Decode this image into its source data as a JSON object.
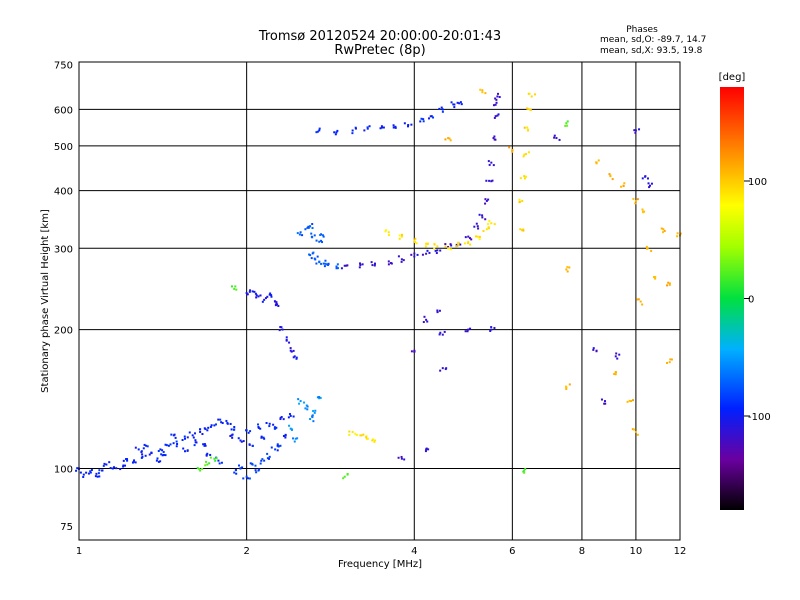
{
  "header": {
    "title_line1": "Tromsø 20120524 20:00:00-20:01:43",
    "title_line2": "RwPretec (8p)",
    "phases_title": "Phases",
    "phases_line1": "mean, sd,O: -89.7, 14.7",
    "phases_line2": "mean, sd,X:  93.5, 19.8"
  },
  "colorbar": {
    "unit_label": "[deg]",
    "min": -180,
    "max": 180,
    "ticks": [
      {
        "value": 100,
        "label": "100"
      },
      {
        "value": 0,
        "label": "0"
      },
      {
        "value": -100,
        "label": "-100"
      }
    ]
  },
  "chart_data": {
    "type": "scatter",
    "xlabel": "Frequency [MHz]",
    "ylabel": "Stationary phase Virtual Height [km]",
    "x_scale": "log",
    "y_scale": "log",
    "xlim": [
      1,
      12
    ],
    "ylim": [
      70,
      760
    ],
    "x_ticks": [
      {
        "value": 1,
        "label": "1"
      },
      {
        "value": 2,
        "label": "2"
      },
      {
        "value": 4,
        "label": "4"
      },
      {
        "value": 6,
        "label": "6"
      },
      {
        "value": 8,
        "label": "8"
      },
      {
        "value": 10,
        "label": "10"
      },
      {
        "value": 12,
        "label": "12"
      }
    ],
    "x_grid": [
      2,
      4,
      6,
      8,
      10
    ],
    "y_ticks": [
      {
        "value": 75,
        "label": "75"
      },
      {
        "value": 100,
        "label": "100"
      },
      {
        "value": 200,
        "label": "200"
      },
      {
        "value": 300,
        "label": "300"
      },
      {
        "value": 400,
        "label": "400"
      },
      {
        "value": 500,
        "label": "500"
      },
      {
        "value": 600,
        "label": "600"
      },
      {
        "value": 750,
        "label": "750"
      }
    ],
    "y_grid": [
      100,
      200,
      300,
      400,
      500,
      600
    ],
    "grid": true,
    "traces": [
      {
        "phase": -100,
        "points": [
          [
            1.0,
            100
          ],
          [
            1.05,
            98
          ],
          [
            1.1,
            99
          ],
          [
            1.15,
            100
          ],
          [
            1.2,
            101
          ],
          [
            1.25,
            103
          ],
          [
            1.3,
            106
          ],
          [
            1.35,
            108
          ],
          [
            1.4,
            110
          ],
          [
            1.45,
            112
          ],
          [
            1.5,
            113
          ],
          [
            1.55,
            116
          ],
          [
            1.6,
            118
          ],
          [
            1.65,
            120
          ],
          [
            1.7,
            121
          ],
          [
            1.75,
            124
          ],
          [
            1.8,
            126
          ],
          [
            1.85,
            125
          ],
          [
            1.9,
            123
          ],
          [
            2.0,
            121
          ],
          [
            2.1,
            123
          ],
          [
            2.2,
            125
          ],
          [
            2.3,
            128
          ],
          [
            2.4,
            130
          ]
        ]
      },
      {
        "phase": -100,
        "points": [
          [
            1.02,
            97
          ],
          [
            1.08,
            96
          ],
          [
            1.12,
            102
          ],
          [
            1.22,
            104
          ],
          [
            1.28,
            110
          ],
          [
            1.32,
            112
          ],
          [
            1.38,
            104
          ],
          [
            1.42,
            107
          ],
          [
            1.48,
            118
          ],
          [
            1.55,
            109
          ],
          [
            1.62,
            114
          ],
          [
            1.68,
            112
          ],
          [
            1.72,
            107
          ],
          [
            1.78,
            104
          ],
          [
            1.88,
            118
          ],
          [
            1.95,
            115
          ],
          [
            2.05,
            112
          ],
          [
            2.15,
            116
          ],
          [
            2.25,
            122
          ],
          [
            2.35,
            118
          ]
        ]
      },
      {
        "phase": -90,
        "points": [
          [
            1.9,
            98
          ],
          [
            1.95,
            100
          ],
          [
            2.0,
            96
          ],
          [
            2.05,
            102
          ],
          [
            2.1,
            99
          ],
          [
            2.15,
            104
          ],
          [
            2.2,
            106
          ],
          [
            2.25,
            110
          ],
          [
            2.3,
            112
          ]
        ]
      },
      {
        "phase": -110,
        "points": [
          [
            2.0,
            240
          ],
          [
            2.05,
            242
          ],
          [
            2.1,
            236
          ],
          [
            2.15,
            232
          ],
          [
            2.2,
            238
          ],
          [
            2.25,
            230
          ],
          [
            2.28,
            225
          ],
          [
            2.32,
            200
          ],
          [
            2.36,
            190
          ],
          [
            2.4,
            180
          ],
          [
            2.44,
            175
          ]
        ]
      },
      {
        "phase": -80,
        "points": [
          [
            2.5,
            325
          ],
          [
            2.55,
            330
          ],
          [
            2.6,
            335
          ],
          [
            2.65,
            320
          ],
          [
            2.7,
            310
          ],
          [
            2.75,
            318
          ],
          [
            2.6,
            290
          ],
          [
            2.65,
            285
          ],
          [
            2.7,
            280
          ],
          [
            2.75,
            278
          ],
          [
            2.8,
            276
          ],
          [
            2.9,
            274
          ]
        ]
      },
      {
        "phase": -100,
        "points": [
          [
            2.7,
            540
          ],
          [
            2.9,
            535
          ],
          [
            3.1,
            540
          ],
          [
            3.3,
            545
          ],
          [
            3.5,
            548
          ],
          [
            3.7,
            550
          ],
          [
            3.9,
            555
          ],
          [
            4.1,
            565
          ],
          [
            4.3,
            580
          ],
          [
            4.5,
            600
          ],
          [
            4.7,
            615
          ],
          [
            4.85,
            622
          ]
        ]
      },
      {
        "phase": -120,
        "points": [
          [
            3.0,
            275
          ],
          [
            3.2,
            276
          ],
          [
            3.4,
            278
          ],
          [
            3.6,
            281
          ],
          [
            3.8,
            284
          ],
          [
            4.0,
            288
          ],
          [
            4.2,
            292
          ],
          [
            4.4,
            297
          ],
          [
            4.6,
            302
          ],
          [
            4.8,
            308
          ],
          [
            5.0,
            318
          ],
          [
            5.2,
            335
          ],
          [
            5.3,
            350
          ],
          [
            5.4,
            380
          ],
          [
            5.45,
            420
          ],
          [
            5.5,
            460
          ],
          [
            5.55,
            520
          ],
          [
            5.6,
            580
          ],
          [
            5.62,
            620
          ],
          [
            5.64,
            640
          ]
        ]
      },
      {
        "phase": 90,
        "points": [
          [
            3.6,
            325
          ],
          [
            3.8,
            318
          ],
          [
            4.0,
            312
          ],
          [
            4.2,
            307
          ],
          [
            4.4,
            303
          ],
          [
            4.6,
            300
          ],
          [
            4.8,
            305
          ],
          [
            5.0,
            310
          ],
          [
            5.2,
            318
          ],
          [
            5.4,
            330
          ],
          [
            5.5,
            340
          ]
        ]
      },
      {
        "phase": 95,
        "points": [
          [
            6.2,
            330
          ],
          [
            6.25,
            380
          ],
          [
            6.3,
            430
          ],
          [
            6.35,
            480
          ],
          [
            6.4,
            540
          ],
          [
            6.45,
            600
          ],
          [
            6.5,
            640
          ]
        ]
      },
      {
        "phase": -60,
        "points": [
          [
            2.5,
            140
          ],
          [
            2.55,
            135
          ],
          [
            2.6,
            128
          ],
          [
            2.65,
            132
          ],
          [
            2.7,
            142
          ],
          [
            2.4,
            122
          ],
          [
            2.45,
            116
          ]
        ]
      },
      {
        "phase": 90,
        "points": [
          [
            3.1,
            120
          ],
          [
            3.2,
            118
          ],
          [
            3.3,
            116
          ],
          [
            3.4,
            115
          ]
        ]
      },
      {
        "phase": 110,
        "points": [
          [
            8.5,
            460
          ],
          [
            9.0,
            430
          ],
          [
            9.5,
            410
          ],
          [
            10.0,
            380
          ],
          [
            10.3,
            360
          ],
          [
            10.5,
            300
          ],
          [
            10.8,
            260
          ],
          [
            11.5,
            250
          ],
          [
            11.2,
            330
          ],
          [
            12.0,
            320
          ],
          [
            10.2,
            230
          ],
          [
            11.5,
            170
          ],
          [
            7.5,
            270
          ],
          [
            7.5,
            150
          ],
          [
            9.2,
            160
          ],
          [
            9.8,
            140
          ],
          [
            10.0,
            120
          ],
          [
            6.0,
            490
          ],
          [
            5.3,
            660
          ],
          [
            4.6,
            520
          ]
        ]
      },
      {
        "phase": -120,
        "points": [
          [
            4.4,
            220
          ],
          [
            4.2,
            210
          ],
          [
            4.5,
            195
          ],
          [
            5.0,
            200
          ],
          [
            5.5,
            200
          ],
          [
            4.0,
            180
          ],
          [
            3.8,
            105
          ],
          [
            4.2,
            110
          ],
          [
            8.5,
            180
          ],
          [
            9.2,
            175
          ],
          [
            10.0,
            540
          ],
          [
            10.4,
            430
          ],
          [
            10.6,
            410
          ],
          [
            7.2,
            520
          ],
          [
            8.8,
            140
          ],
          [
            4.5,
            165
          ]
        ]
      },
      {
        "phase": 20,
        "points": [
          [
            1.7,
            102
          ],
          [
            1.75,
            105
          ],
          [
            1.65,
            99
          ],
          [
            1.9,
            245
          ],
          [
            3.0,
            96
          ],
          [
            6.3,
            99
          ],
          [
            7.5,
            560
          ]
        ]
      }
    ]
  }
}
